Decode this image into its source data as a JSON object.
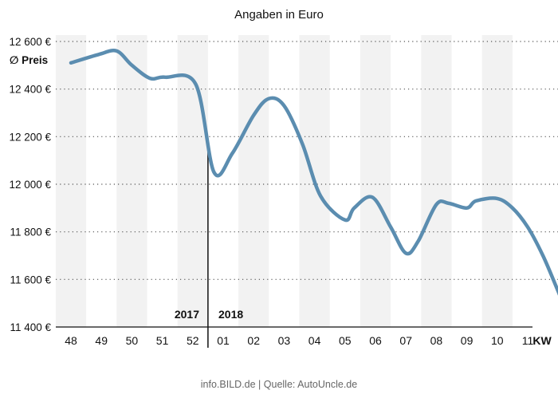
{
  "chart_data": {
    "type": "line",
    "title": "Angaben in Euro",
    "ylabel": "∅ Preis",
    "xlabel": "KW",
    "source": "info.BILD.de | Quelle: AutoUncle.de",
    "year_labels": {
      "left": "2017",
      "right": "2018"
    },
    "categories": [
      "48",
      "49",
      "50",
      "51",
      "52",
      "01",
      "02",
      "03",
      "04",
      "05",
      "06",
      "07",
      "08",
      "09",
      "10",
      "11"
    ],
    "x": [
      48.0,
      48.9,
      49.5,
      50.0,
      50.6,
      51.1,
      52.1,
      52.7,
      53.3,
      54.0,
      54.5,
      55.0,
      55.6,
      56.2,
      57.0,
      57.3,
      57.9,
      58.5,
      59.0,
      59.4,
      60.0,
      60.4,
      61.0,
      61.3,
      62.0,
      62.5,
      63.0,
      63.5,
      64.0,
      64.4,
      64.6
    ],
    "y": [
      12510,
      12545,
      12560,
      12500,
      12445,
      12450,
      12420,
      12050,
      12130,
      12290,
      12360,
      12330,
      12170,
      11950,
      11850,
      11900,
      11945,
      11820,
      11710,
      11760,
      11915,
      11920,
      11900,
      11930,
      11940,
      11900,
      11820,
      11700,
      11550,
      11430,
      11440
    ],
    "ylim": [
      11400,
      12600
    ],
    "yticks": [
      11400,
      11600,
      11800,
      12000,
      12200,
      12400,
      12600
    ],
    "ytick_labels": [
      "11 400 €",
      "11 600 €",
      "11 800 €",
      "12 000 €",
      "12 200 €",
      "12 400 €",
      "12 600 €"
    ],
    "year_boundary_x": 52.5,
    "grid": "horizontal-dotted",
    "colors": {
      "line": "#5b8db0",
      "stripe": "#f2f2f2",
      "text": "#111111",
      "grid": "#555555",
      "source": "#666666"
    }
  }
}
